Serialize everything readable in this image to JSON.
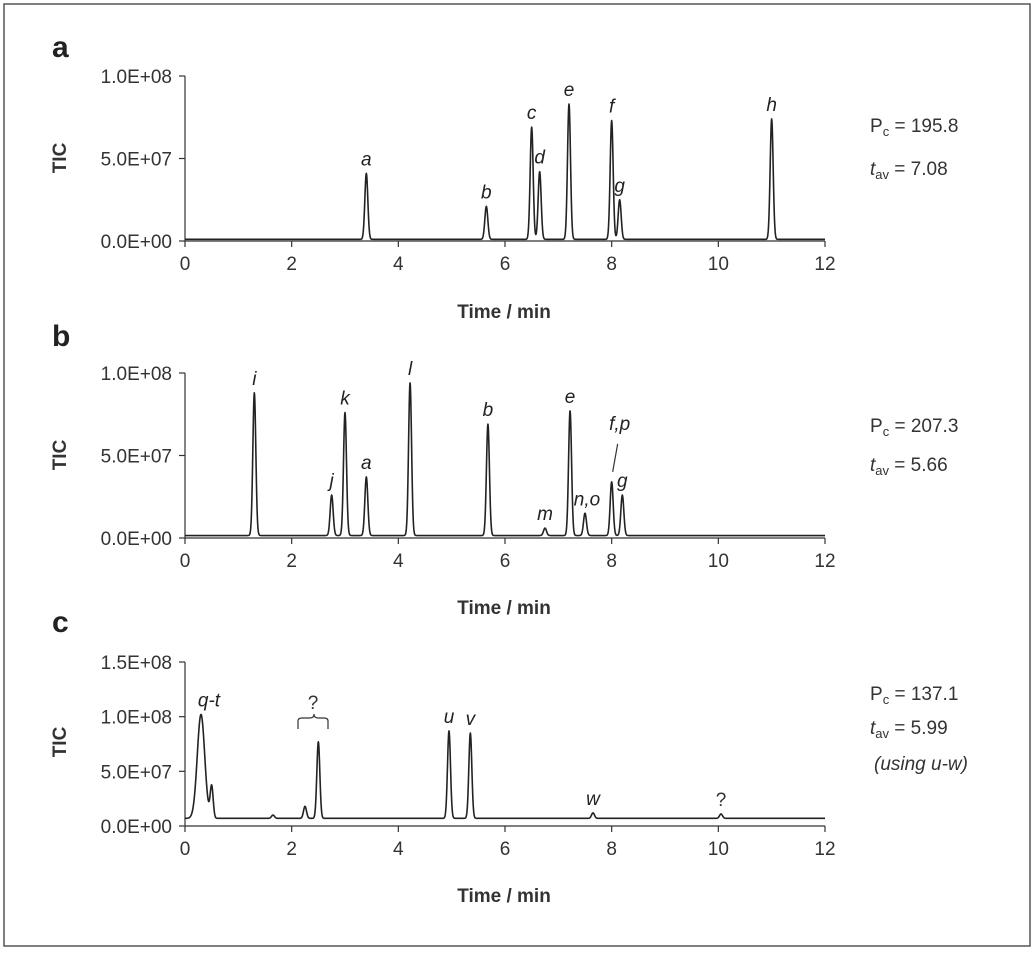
{
  "chart_data": [
    {
      "type": "line",
      "panel": "a",
      "ylabel": "TIC",
      "xlabel": "Time / min",
      "xlim": [
        0,
        12
      ],
      "ylim": [
        0,
        100000000
      ],
      "xticks": [
        "0",
        "2",
        "4",
        "6",
        "8",
        "10",
        "12"
      ],
      "yticks": [
        "0.0E+00",
        "5.0E+07",
        "1.0E+08"
      ],
      "baseline": 1000000,
      "peaks": [
        {
          "label": "a",
          "x": 3.4,
          "y": 41000000
        },
        {
          "label": "b",
          "x": 5.65,
          "y": 21000000
        },
        {
          "label": "c",
          "x": 6.5,
          "y": 69000000
        },
        {
          "label": "d",
          "x": 6.65,
          "y": 42000000
        },
        {
          "label": "e",
          "x": 7.2,
          "y": 83000000
        },
        {
          "label": "f",
          "x": 8.0,
          "y": 73000000
        },
        {
          "label": "g",
          "x": 8.15,
          "y": 25000000
        },
        {
          "label": "h",
          "x": 11.0,
          "y": 74000000
        }
      ],
      "stats": {
        "pc_label": "P",
        "pc_sub": "c",
        "pc_value": " = 195.8",
        "tav_label": "t",
        "tav_sub": "av",
        "tav_value": " = 7.08"
      }
    },
    {
      "type": "line",
      "panel": "b",
      "ylabel": "TIC",
      "xlabel": "Time / min",
      "xlim": [
        0,
        12
      ],
      "ylim": [
        0,
        100000000
      ],
      "xticks": [
        "0",
        "2",
        "4",
        "6",
        "8",
        "10",
        "12"
      ],
      "yticks": [
        "0.0E+00",
        "5.0E+07",
        "1.0E+08"
      ],
      "baseline": 1500000,
      "peaks": [
        {
          "label": "i",
          "x": 1.3,
          "y": 88000000
        },
        {
          "label": "j",
          "x": 2.75,
          "y": 26000000
        },
        {
          "label": "k",
          "x": 3.0,
          "y": 76000000
        },
        {
          "label": "a",
          "x": 3.4,
          "y": 37000000
        },
        {
          "label": "l",
          "x": 4.22,
          "y": 94000000
        },
        {
          "label": "b",
          "x": 5.68,
          "y": 69000000
        },
        {
          "label": "m",
          "x": 6.75,
          "y": 6000000
        },
        {
          "label": "e",
          "x": 7.22,
          "y": 77000000
        },
        {
          "label": "n,o",
          "x": 7.5,
          "y": 15000000
        },
        {
          "label": "f,p",
          "x": 8.0,
          "y": 34000000
        },
        {
          "label": "g",
          "x": 8.2,
          "y": 26000000
        }
      ],
      "stats": {
        "pc_label": "P",
        "pc_sub": "c",
        "pc_value": " = 207.3",
        "tav_label": "t",
        "tav_sub": "av",
        "tav_value": " = 5.66"
      }
    },
    {
      "type": "line",
      "panel": "c",
      "ylabel": "TIC",
      "xlabel": "Time / min",
      "xlim": [
        0,
        12
      ],
      "ylim": [
        0,
        150000000
      ],
      "xticks": [
        "0",
        "2",
        "4",
        "6",
        "8",
        "10",
        "12"
      ],
      "yticks": [
        "0.0E+00",
        "5.0E+07",
        "1.0E+08",
        "1.5E+08"
      ],
      "baseline": 7000000,
      "peaks": [
        {
          "label": "q-t",
          "x": 0.3,
          "y": 102000000
        },
        {
          "label": "",
          "x": 0.5,
          "y": 36000000
        },
        {
          "label": "",
          "x": 1.65,
          "y": 10000000
        },
        {
          "label": "",
          "x": 2.25,
          "y": 18000000
        },
        {
          "label": "",
          "x": 2.5,
          "y": 77000000
        },
        {
          "label": "u",
          "x": 4.95,
          "y": 87000000
        },
        {
          "label": "v",
          "x": 5.35,
          "y": 85000000
        },
        {
          "label": "w",
          "x": 7.65,
          "y": 12000000
        },
        {
          "label": "?",
          "x": 10.05,
          "y": 11000000
        }
      ],
      "bracket_label": "?",
      "stats": {
        "pc_label": "P",
        "pc_sub": "c",
        "pc_value": " = 137.1",
        "tav_label": "t",
        "tav_sub": "av",
        "tav_value": " = 5.99",
        "note": "(using u-w)"
      }
    }
  ],
  "colors": {
    "trace": "#222222",
    "axis": "#333333",
    "frame": "#555555",
    "background": "#ffffff"
  }
}
